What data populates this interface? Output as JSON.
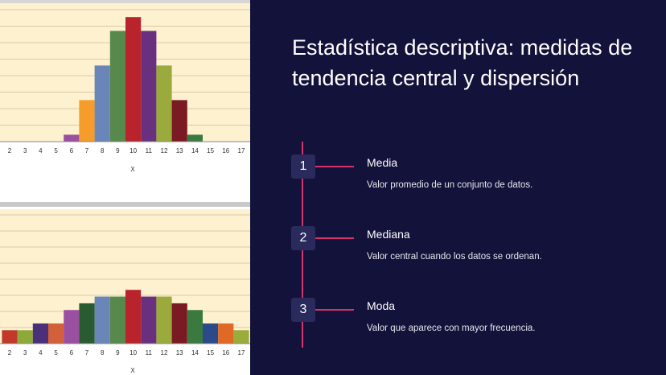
{
  "slide": {
    "title": "Estadística descriptiva: medidas de tendencia central y dispersión",
    "steps": [
      {
        "number": "1",
        "title": "Media",
        "description": "Valor promedio de un conjunto de datos."
      },
      {
        "number": "2",
        "title": "Mediana",
        "description": "Valor central cuando los datos se ordenan."
      },
      {
        "number": "3",
        "title": "Moda",
        "description": "Valor que aparece con mayor frecuencia."
      }
    ],
    "colors": {
      "background": "#13123a",
      "accent": "#d6326b",
      "number_box": "#2a2a5c"
    }
  },
  "chart_data": [
    {
      "type": "bar",
      "title": "",
      "xlabel": "X",
      "ylabel": "",
      "categories": [
        "2",
        "3",
        "4",
        "5",
        "6",
        "7",
        "8",
        "9",
        "10",
        "11",
        "12",
        "13",
        "14",
        "15",
        "16",
        "17"
      ],
      "values": [
        0,
        0,
        0,
        0,
        1,
        6,
        11,
        16,
        18,
        16,
        11,
        6,
        1,
        0,
        0,
        0
      ],
      "ylim": [
        0,
        20
      ],
      "grid": true,
      "bar_colors": [
        "#c0392b",
        "#8fa83a",
        "#4a2f7a",
        "#d2603a",
        "#9b4fa0",
        "#f59c2a",
        "#6a86b8",
        "#56894b",
        "#b8232c",
        "#6a3080",
        "#9aaa3c",
        "#7a1a22",
        "#3a7a40",
        "#2c4a8a",
        "#e06a25",
        "#9aac3a"
      ]
    },
    {
      "type": "bar",
      "title": "",
      "xlabel": "X",
      "ylabel": "",
      "categories": [
        "2",
        "3",
        "4",
        "5",
        "6",
        "7",
        "8",
        "9",
        "10",
        "11",
        "12",
        "13",
        "14",
        "15",
        "16",
        "17"
      ],
      "values": [
        2,
        2,
        3,
        3,
        5,
        6,
        7,
        7,
        8,
        7,
        7,
        6,
        5,
        3,
        3,
        2
      ],
      "ylim": [
        0,
        20
      ],
      "grid": true,
      "bar_colors": [
        "#c0392b",
        "#8fa83a",
        "#4a2f7a",
        "#d2603a",
        "#9b4fa0",
        "#2a5a30",
        "#6a86b8",
        "#56894b",
        "#b8232c",
        "#6a3080",
        "#9aaa3c",
        "#7a1a22",
        "#3a7a40",
        "#2c4a8a",
        "#e06a25",
        "#9aac3a"
      ]
    }
  ]
}
